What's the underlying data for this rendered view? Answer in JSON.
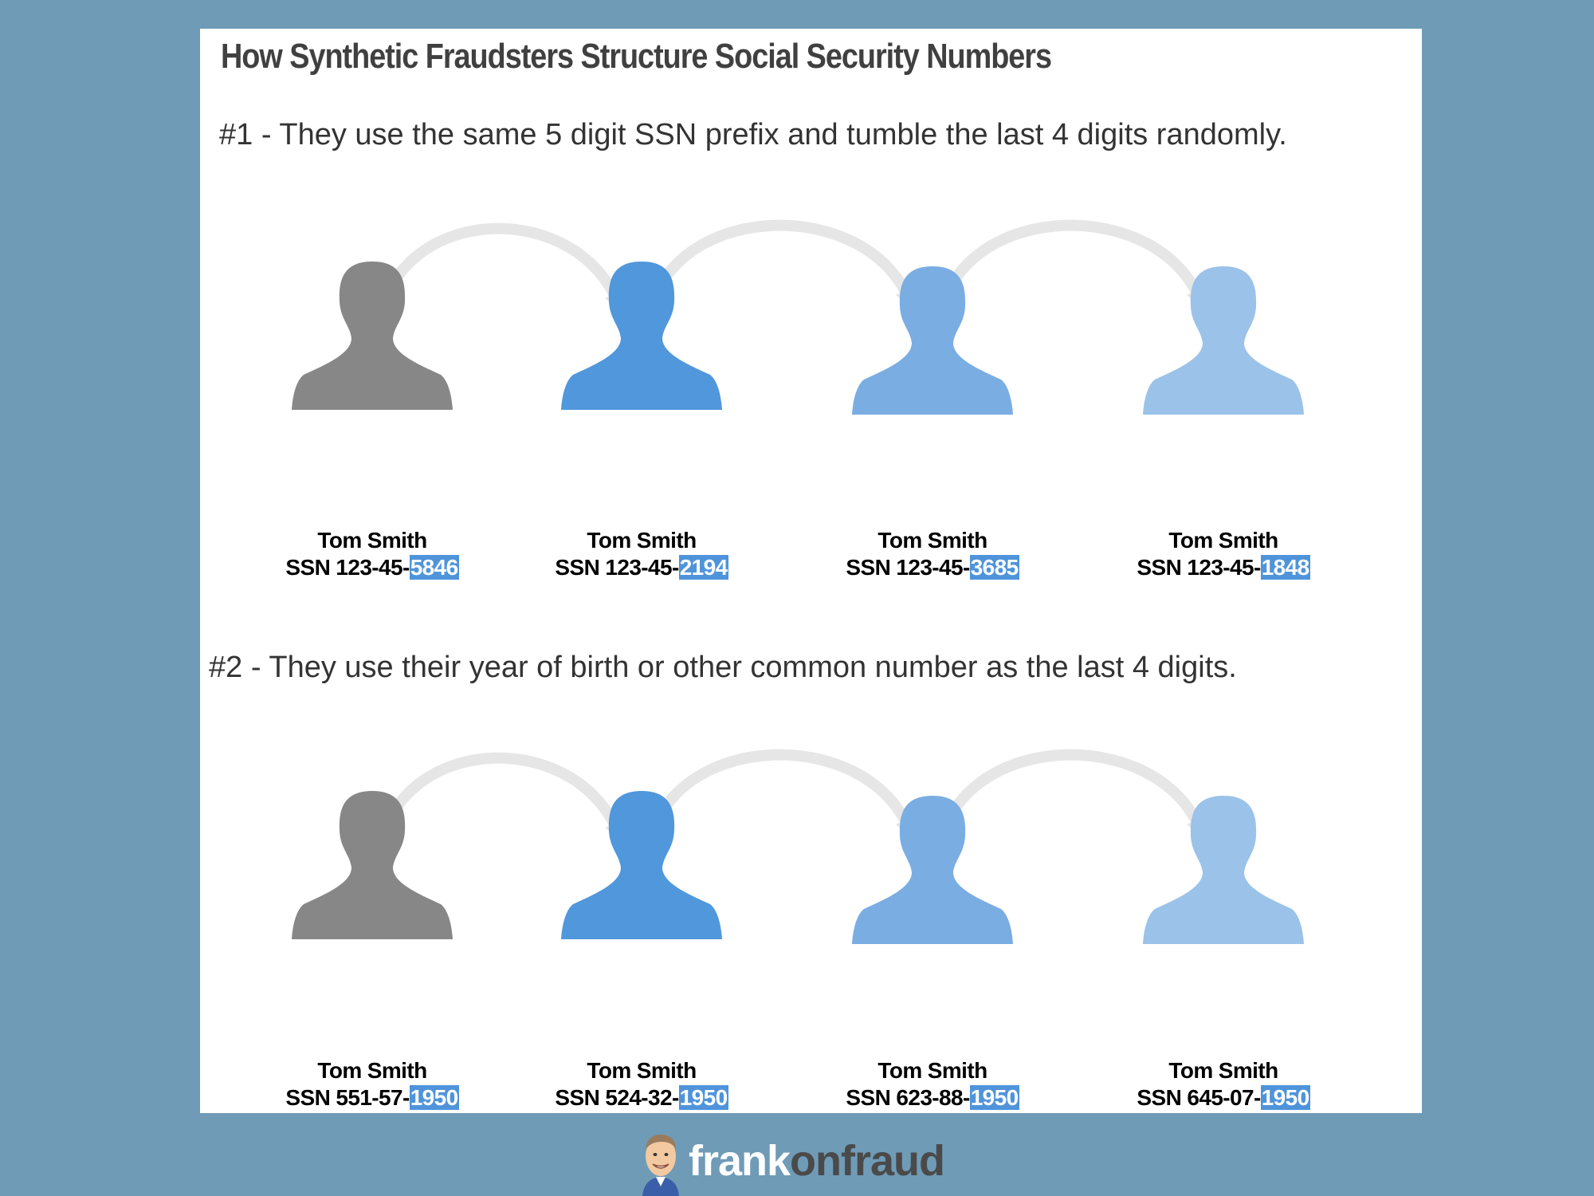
{
  "title": "How Synthetic Fraudsters Structure Social Security Numbers",
  "sections": [
    {
      "heading": "#1 - They use the same 5 digit SSN prefix and tumble the last 4 digits randomly.",
      "people": [
        {
          "name": "Tom Smith",
          "ssn_prefix": "SSN 123-45-",
          "ssn_last4": "5846",
          "color": "#878787"
        },
        {
          "name": "Tom Smith",
          "ssn_prefix": "SSN 123-45-",
          "ssn_last4": "2194",
          "color": "#5097db"
        },
        {
          "name": "Tom Smith",
          "ssn_prefix": "SSN 123-45-",
          "ssn_last4": "3685",
          "color": "#7aade2"
        },
        {
          "name": "Tom Smith",
          "ssn_prefix": "SSN 123-45-",
          "ssn_last4": "1848",
          "color": "#9bc2e9"
        }
      ]
    },
    {
      "heading": "#2 - They use their year of birth or other common number as the last 4 digits.",
      "people": [
        {
          "name": "Tom Smith",
          "ssn_prefix": "SSN 551-57-",
          "ssn_last4": "1950",
          "color": "#878787"
        },
        {
          "name": "Tom Smith",
          "ssn_prefix": "SSN 524-32-",
          "ssn_last4": "1950",
          "color": "#5097db"
        },
        {
          "name": "Tom Smith",
          "ssn_prefix": "SSN 623-88-",
          "ssn_last4": "1950",
          "color": "#7aade2"
        },
        {
          "name": "Tom Smith",
          "ssn_prefix": "SSN 645-07-",
          "ssn_last4": "1950",
          "color": "#9bc2e9"
        }
      ]
    }
  ],
  "arrow_color": "#e6e6e6",
  "highlight_color": "#4f94db",
  "footer": {
    "brand_part1": "frank",
    "brand_part2": "onfraud",
    "avatar_icon": "cartoon-man-avatar-icon"
  }
}
